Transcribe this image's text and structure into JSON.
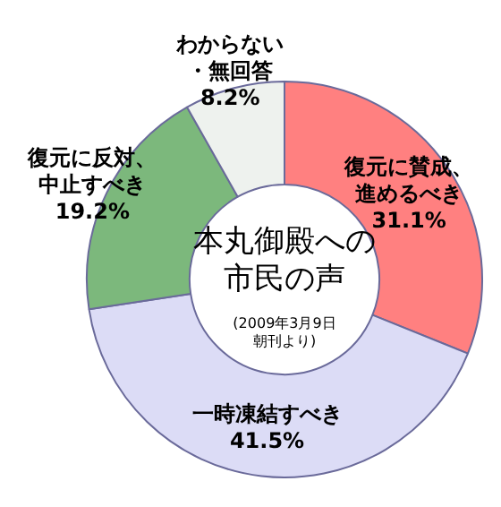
{
  "chart_data": {
    "type": "donut",
    "title": "本丸御殿への市民の声",
    "annotations": [
      "(2009年3月9日朝刊より)"
    ],
    "categories": [
      "復元に賛成、進めるべき",
      "一時凍結すべき",
      "復元に反対、中止すべき",
      "わからない・無回答"
    ],
    "values": [
      31.1,
      41.5,
      19.2,
      8.2
    ],
    "value_labels": [
      "31.1%",
      "41.5%",
      "19.2%",
      "8.2%"
    ],
    "colors": [
      "#ff8080",
      "#dcdcf6",
      "#7cb87c",
      "#eef2ee"
    ],
    "legend": false
  }
}
